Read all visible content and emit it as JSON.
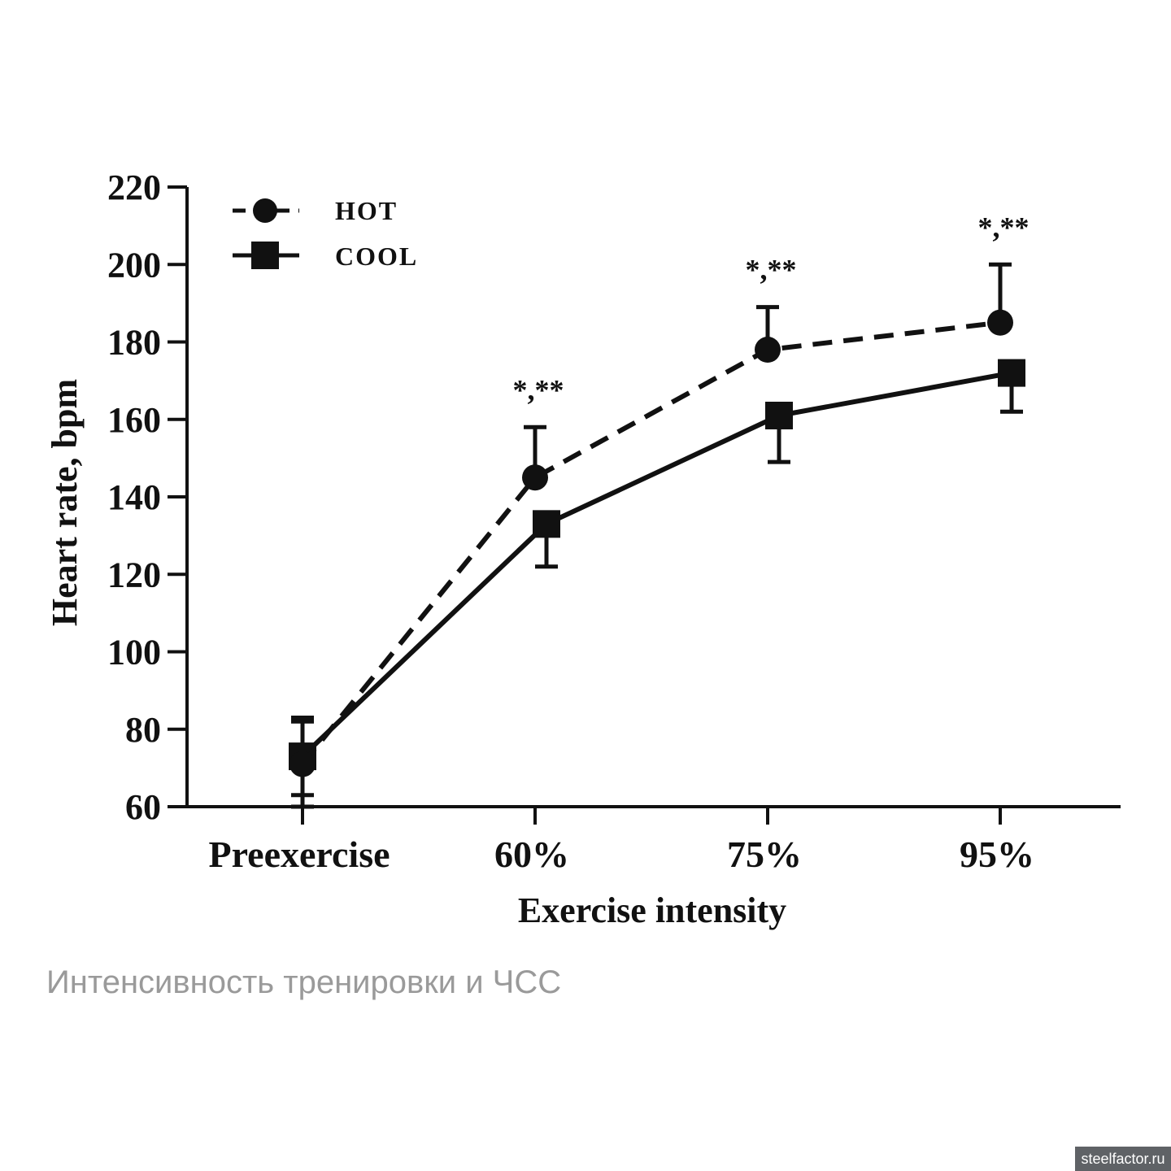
{
  "chart_data": {
    "type": "line",
    "categories": [
      "Preexercise",
      "60%",
      "75%",
      "95%"
    ],
    "series": [
      {
        "name": "HOT",
        "values": [
          71,
          145,
          178,
          185
        ],
        "error": [
          11,
          13,
          11,
          15
        ],
        "marker": "circle",
        "line_style": "dashed"
      },
      {
        "name": "COOL",
        "values": [
          73,
          133,
          161,
          172
        ],
        "error": [
          10,
          11,
          12,
          10
        ],
        "marker": "square",
        "line_style": "solid"
      }
    ],
    "annotations": [
      "*,**",
      "*,**",
      "*,**"
    ],
    "annotation_categories": [
      "60%",
      "75%",
      "95%"
    ],
    "xlabel": "Exercise intensity",
    "ylabel": "Heart rate, bpm",
    "ylim": [
      60,
      220
    ],
    "yticks": [
      60,
      80,
      100,
      120,
      140,
      160,
      180,
      200,
      220
    ],
    "grid": false,
    "legend_position": "top-left",
    "line_color": "#111111"
  },
  "caption": "Интенсивность тренировки и ЧСС",
  "watermark": "steelfactor.ru"
}
